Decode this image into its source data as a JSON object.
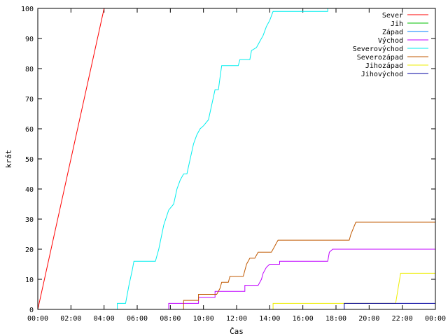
{
  "chart_data": {
    "type": "line",
    "title": "",
    "xlabel": "Čas",
    "ylabel": "krát",
    "xlim": [
      0,
      24
    ],
    "ylim": [
      0,
      100
    ],
    "x_ticks": [
      {
        "value": 0,
        "label": "00:00"
      },
      {
        "value": 2,
        "label": "02:00"
      },
      {
        "value": 4,
        "label": "04:00"
      },
      {
        "value": 6,
        "label": "06:00"
      },
      {
        "value": 8,
        "label": "08:00"
      },
      {
        "value": 10,
        "label": "10:00"
      },
      {
        "value": 12,
        "label": "12:00"
      },
      {
        "value": 14,
        "label": "14:00"
      },
      {
        "value": 16,
        "label": "16:00"
      },
      {
        "value": 18,
        "label": "18:00"
      },
      {
        "value": 20,
        "label": "20:00"
      },
      {
        "value": 22,
        "label": "22:00"
      },
      {
        "value": 24,
        "label": "00:00"
      }
    ],
    "y_ticks": [
      0,
      10,
      20,
      30,
      40,
      50,
      60,
      70,
      80,
      90,
      100
    ],
    "grid": false,
    "legend_position": "top-right",
    "series": [
      {
        "name": "Sever",
        "color": "#ff0000",
        "points": [
          [
            0,
            0
          ],
          [
            4,
            100
          ]
        ]
      },
      {
        "name": "Jih",
        "color": "#00c000",
        "points": []
      },
      {
        "name": "Západ",
        "color": "#0080ff",
        "points": []
      },
      {
        "name": "Východ",
        "color": "#c000ff",
        "points": [
          [
            7.9,
            0
          ],
          [
            7.9,
            2
          ],
          [
            9.7,
            2
          ],
          [
            9.7,
            4
          ],
          [
            10.7,
            4
          ],
          [
            10.7,
            6
          ],
          [
            12.5,
            6
          ],
          [
            12.5,
            8
          ],
          [
            13.3,
            8
          ],
          [
            13.5,
            10
          ],
          [
            13.6,
            12
          ],
          [
            13.8,
            14
          ],
          [
            14,
            15
          ],
          [
            14.6,
            15
          ],
          [
            14.6,
            16
          ],
          [
            17.5,
            16
          ],
          [
            17.6,
            19
          ],
          [
            17.8,
            20
          ],
          [
            24,
            20
          ]
        ]
      },
      {
        "name": "Severovýchod",
        "color": "#00eeee",
        "points": [
          [
            4.8,
            0
          ],
          [
            4.8,
            2
          ],
          [
            5.3,
            2
          ],
          [
            5.5,
            8
          ],
          [
            5.7,
            13
          ],
          [
            5.8,
            16
          ],
          [
            7.1,
            16
          ],
          [
            7.3,
            20
          ],
          [
            7.6,
            28
          ],
          [
            7.9,
            33
          ],
          [
            8.2,
            35
          ],
          [
            8.4,
            40
          ],
          [
            8.6,
            43
          ],
          [
            8.8,
            45
          ],
          [
            9.0,
            45
          ],
          [
            9.2,
            50
          ],
          [
            9.4,
            55
          ],
          [
            9.6,
            58
          ],
          [
            9.8,
            60
          ],
          [
            10.0,
            61
          ],
          [
            10.3,
            63
          ],
          [
            10.5,
            68
          ],
          [
            10.7,
            73
          ],
          [
            10.9,
            73
          ],
          [
            11.0,
            77
          ],
          [
            11.1,
            81
          ],
          [
            12.1,
            81
          ],
          [
            12.2,
            83
          ],
          [
            12.8,
            83
          ],
          [
            12.9,
            86
          ],
          [
            13.2,
            87
          ],
          [
            13.4,
            89
          ],
          [
            13.6,
            91
          ],
          [
            13.8,
            94
          ],
          [
            14.0,
            96
          ],
          [
            14.2,
            99
          ],
          [
            17.5,
            99
          ],
          [
            17.5,
            100
          ]
        ]
      },
      {
        "name": "Severozápad",
        "color": "#c05800",
        "points": [
          [
            8.8,
            0
          ],
          [
            8.8,
            3
          ],
          [
            9.7,
            3
          ],
          [
            9.7,
            5
          ],
          [
            10.8,
            5
          ],
          [
            11,
            7
          ],
          [
            11.1,
            9
          ],
          [
            11.5,
            9
          ],
          [
            11.6,
            11
          ],
          [
            12.4,
            11
          ],
          [
            12.6,
            15
          ],
          [
            12.8,
            17
          ],
          [
            13.1,
            17
          ],
          [
            13.3,
            19
          ],
          [
            14.1,
            19
          ],
          [
            14.2,
            20
          ],
          [
            14.4,
            22
          ],
          [
            14.5,
            23
          ],
          [
            18.8,
            23
          ],
          [
            18.9,
            25
          ],
          [
            19.2,
            29
          ],
          [
            24,
            29
          ]
        ]
      },
      {
        "name": "Jihozápad",
        "color": "#eeee00",
        "points": [
          [
            14.2,
            0
          ],
          [
            14.2,
            2
          ],
          [
            21.6,
            2
          ],
          [
            21.9,
            12
          ],
          [
            24,
            12
          ]
        ]
      },
      {
        "name": "Jihovýchod",
        "color": "#0000a0",
        "points": [
          [
            18.5,
            0
          ],
          [
            18.5,
            2
          ],
          [
            24,
            2
          ]
        ]
      }
    ]
  }
}
